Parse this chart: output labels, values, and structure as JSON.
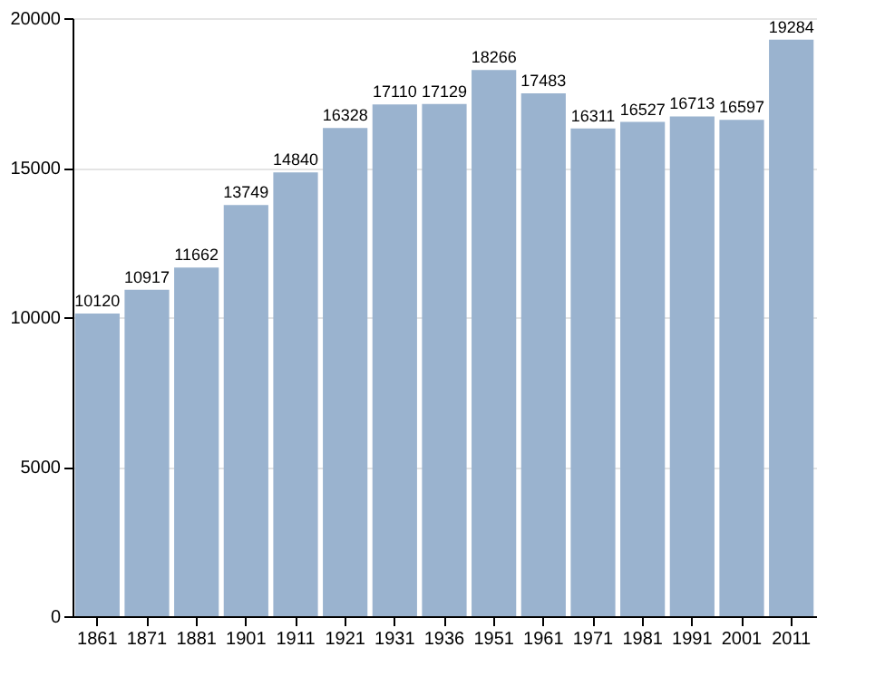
{
  "chart_data": {
    "type": "bar",
    "categories": [
      "1861",
      "1871",
      "1881",
      "1901",
      "1911",
      "1921",
      "1931",
      "1936",
      "1951",
      "1961",
      "1971",
      "1981",
      "1991",
      "2001",
      "2011"
    ],
    "values": [
      10120,
      10917,
      11662,
      13749,
      14840,
      16328,
      17110,
      17129,
      18266,
      17483,
      16311,
      16527,
      16713,
      16597,
      19284
    ],
    "color": "#9ab3cf",
    "data_labels": true,
    "grid": "y",
    "ylim": [
      0,
      20000
    ],
    "yticks": [
      0,
      5000,
      10000,
      15000,
      20000
    ]
  }
}
